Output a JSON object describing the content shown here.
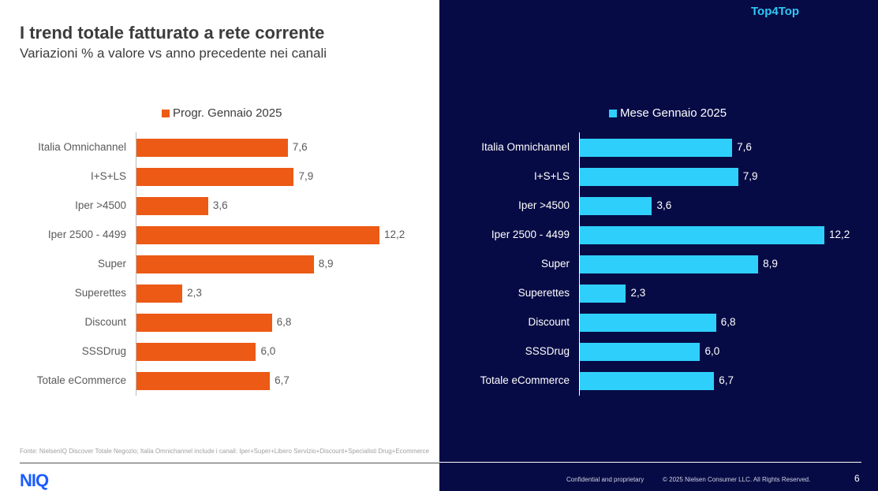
{
  "header": {
    "title": "I trend totale fatturato a rete corrente",
    "subtitle": "Variazioni % a valore vs anno precedente nei canali",
    "brand": "Top4Top"
  },
  "colors": {
    "left_bar": "#ec5a15",
    "right_bar": "#2ed0fb",
    "dark_panel": "#070b45"
  },
  "chart_data": [
    {
      "type": "bar",
      "orientation": "horizontal",
      "legend": "Progr. Gennaio 2025",
      "categories": [
        "Italia Omnichannel",
        "I+S+LS",
        "Iper >4500",
        "Iper 2500 - 4499",
        "Super",
        "Superettes",
        "Discount",
        "SSSDrug",
        "Totale eCommerce"
      ],
      "values": [
        7.6,
        7.9,
        3.6,
        12.2,
        8.9,
        2.3,
        6.8,
        6.0,
        6.7
      ],
      "value_labels": [
        "7,6",
        "7,9",
        "3,6",
        "12,2",
        "8,9",
        "2,3",
        "6,8",
        "6,0",
        "6,7"
      ],
      "xlim": [
        0,
        12.2
      ],
      "grid": false,
      "legend_position": "top"
    },
    {
      "type": "bar",
      "orientation": "horizontal",
      "legend": "Mese Gennaio 2025",
      "categories": [
        "Italia Omnichannel",
        "I+S+LS",
        "Iper >4500",
        "Iper 2500 - 4499",
        "Super",
        "Superettes",
        "Discount",
        "SSSDrug",
        "Totale eCommerce"
      ],
      "values": [
        7.6,
        7.9,
        3.6,
        12.2,
        8.9,
        2.3,
        6.8,
        6.0,
        6.7
      ],
      "value_labels": [
        "7,6",
        "7,9",
        "3,6",
        "12,2",
        "8,9",
        "2,3",
        "6,8",
        "6,0",
        "6,7"
      ],
      "xlim": [
        0,
        12.2
      ],
      "grid": false,
      "legend_position": "top"
    }
  ],
  "footer": {
    "source": "Fonte: NielsenIQ Discover Totale Negozio; Italia Omnichannel include i canali: Iper+Super+Libero Servizio+Discount+Specialisti Drug+Ecommerce",
    "logo": "NIQ",
    "confidential": "Confidential and proprietary",
    "copyright": "© 2025 Nielsen Consumer LLC. All Rights Reserved.",
    "page": "6"
  }
}
